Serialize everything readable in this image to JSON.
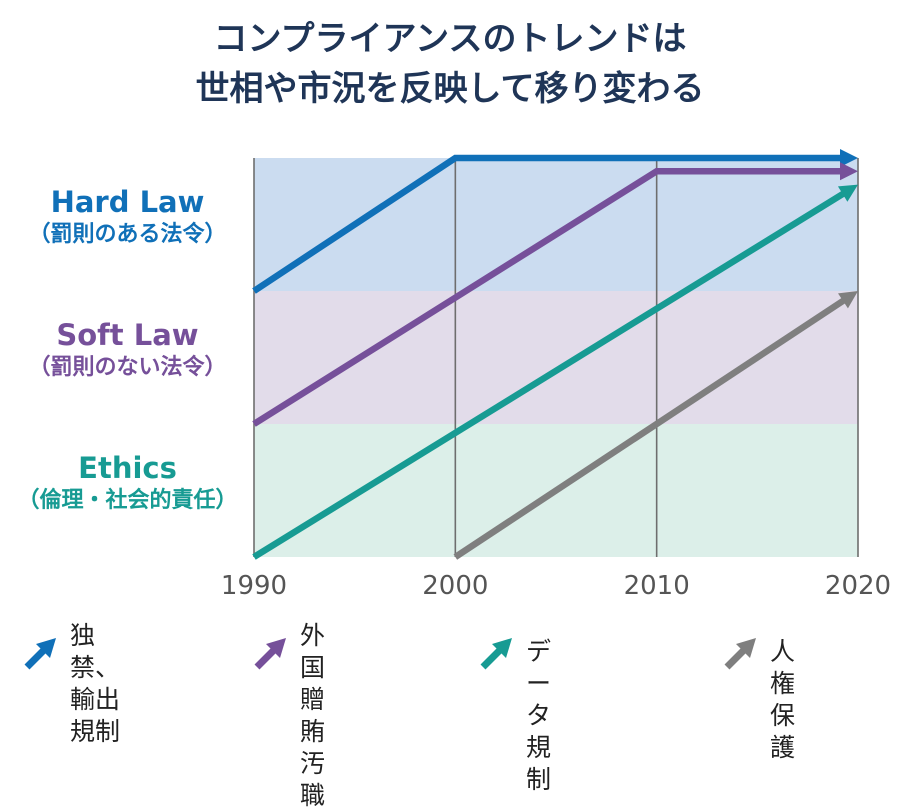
{
  "title": {
    "line1": "コンプライアンスのトレンドは",
    "line2": "世相や市況を反映して移り変わる"
  },
  "bands": [
    {
      "name": "Hard Law",
      "sub": "（罰則のある法令）",
      "color": "#1070b8",
      "fill": "#cbdcf0"
    },
    {
      "name": "Soft Law",
      "sub": "（罰則のない法令）",
      "color": "#76509a",
      "fill": "#e2dcea"
    },
    {
      "name": "Ethics",
      "sub": "（倫理・社会的責任）",
      "color": "#179b93",
      "fill": "#dcefe9"
    }
  ],
  "legend": [
    {
      "label": "独禁、\n輸出規制",
      "color": "#1070b8"
    },
    {
      "label": "外国\n贈賄汚職",
      "color": "#76509a"
    },
    {
      "label": "データ規制",
      "color": "#179b93"
    },
    {
      "label": "人権保護",
      "color": "#7f7f7f"
    }
  ],
  "chart_data": {
    "type": "line",
    "title": "コンプライアンスのトレンドは 世相や市況を反映して移り変わる",
    "xlabel": "",
    "ylabel": "",
    "x_ticks": [
      1990,
      2000,
      2010,
      2020
    ],
    "xlim": [
      1990,
      2020
    ],
    "y_levels": [
      "Ethics（倫理・社会的責任）",
      "Soft Law（罰則のない法令）",
      "Hard Law（罰則のある法令）"
    ],
    "ylim": [
      0,
      3
    ],
    "grid": "vertical lines at 2000 and 2010",
    "series": [
      {
        "name": "独禁、輸出規制",
        "color": "#1070b8",
        "points": [
          [
            1990,
            2.0
          ],
          [
            2000,
            3.0
          ],
          [
            2020,
            3.0
          ]
        ]
      },
      {
        "name": "外国贈賄汚職",
        "color": "#76509a",
        "points": [
          [
            1990,
            1.0
          ],
          [
            2010,
            2.9
          ],
          [
            2020,
            2.9
          ]
        ]
      },
      {
        "name": "データ規制",
        "color": "#179b93",
        "points": [
          [
            1990,
            0.0
          ],
          [
            2020,
            2.8
          ]
        ]
      },
      {
        "name": "人権保護",
        "color": "#7f7f7f",
        "points": [
          [
            2000,
            0.0
          ],
          [
            2020,
            2.0
          ]
        ]
      }
    ]
  }
}
